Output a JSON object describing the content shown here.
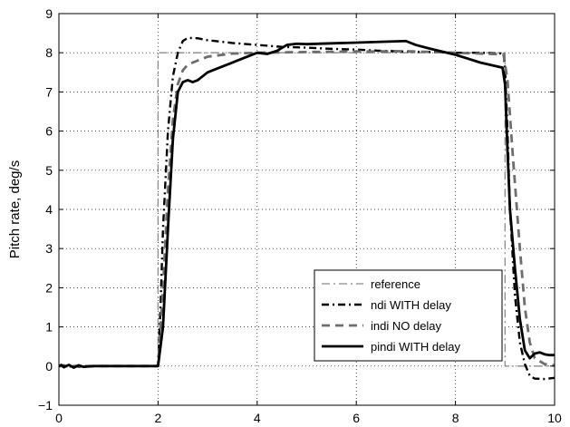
{
  "chart_data": {
    "type": "line",
    "xlabel": "",
    "ylabel": "Pitch rate, deg/s",
    "xlim": [
      0,
      10
    ],
    "ylim": [
      -1,
      9
    ],
    "x_ticks": [
      0,
      2,
      4,
      6,
      8,
      10
    ],
    "y_ticks": [
      -1,
      0,
      1,
      2,
      3,
      4,
      5,
      6,
      7,
      8,
      9
    ],
    "grid": true,
    "legend_position": "bottom-right",
    "series": [
      {
        "name": "reference",
        "color": "#8a8a8a",
        "style": "dashdot-thin",
        "points": [
          [
            0,
            0
          ],
          [
            2.0,
            0
          ],
          [
            2.0,
            8
          ],
          [
            9.0,
            8
          ],
          [
            9.0,
            0
          ],
          [
            10,
            0
          ]
        ]
      },
      {
        "name": "ndi WITH delay",
        "color": "#000000",
        "style": "dashdot",
        "points": [
          [
            0,
            0
          ],
          [
            0.1,
            0.02
          ],
          [
            0.2,
            -0.02
          ],
          [
            0.3,
            0.02
          ],
          [
            0.4,
            -0.02
          ],
          [
            0.5,
            0
          ],
          [
            2.0,
            0
          ],
          [
            2.05,
            1.5
          ],
          [
            2.1,
            3.5
          ],
          [
            2.2,
            6.0
          ],
          [
            2.3,
            7.4
          ],
          [
            2.4,
            8.0
          ],
          [
            2.5,
            8.3
          ],
          [
            2.6,
            8.38
          ],
          [
            2.8,
            8.37
          ],
          [
            3.0,
            8.32
          ],
          [
            3.5,
            8.25
          ],
          [
            4.0,
            8.2
          ],
          [
            4.5,
            8.15
          ],
          [
            5.0,
            8.13
          ],
          [
            5.5,
            8.1
          ],
          [
            6.0,
            8.08
          ],
          [
            6.5,
            8.05
          ],
          [
            7.0,
            8.03
          ],
          [
            7.5,
            8.02
          ],
          [
            8.0,
            8.0
          ],
          [
            8.5,
            8.0
          ],
          [
            8.97,
            7.98
          ],
          [
            9.0,
            7.6
          ],
          [
            9.05,
            6.0
          ],
          [
            9.1,
            4.0
          ],
          [
            9.2,
            1.8
          ],
          [
            9.3,
            0.6
          ],
          [
            9.4,
            0.05
          ],
          [
            9.5,
            -0.25
          ],
          [
            9.6,
            -0.32
          ],
          [
            9.8,
            -0.33
          ],
          [
            10,
            -0.3
          ]
        ]
      },
      {
        "name": "indi NO delay",
        "color": "#6e6e6e",
        "style": "dashed",
        "points": [
          [
            0,
            0
          ],
          [
            2.0,
            0
          ],
          [
            2.1,
            2.0
          ],
          [
            2.2,
            4.5
          ],
          [
            2.3,
            6.3
          ],
          [
            2.4,
            7.2
          ],
          [
            2.5,
            7.55
          ],
          [
            2.6,
            7.7
          ],
          [
            2.8,
            7.8
          ],
          [
            3.0,
            7.9
          ],
          [
            3.5,
            7.98
          ],
          [
            4.0,
            8.0
          ],
          [
            5.0,
            8.02
          ],
          [
            6.0,
            8.03
          ],
          [
            7.0,
            8.04
          ],
          [
            8.0,
            8.0
          ],
          [
            8.97,
            7.96
          ],
          [
            9.05,
            7.3
          ],
          [
            9.15,
            5.5
          ],
          [
            9.3,
            3.0
          ],
          [
            9.4,
            1.5
          ],
          [
            9.5,
            0.6
          ],
          [
            9.6,
            0.2
          ],
          [
            9.8,
            0.05
          ],
          [
            10,
            0.02
          ]
        ]
      },
      {
        "name": "pindi WITH delay",
        "color": "#000000",
        "style": "solid",
        "points": [
          [
            0,
            0
          ],
          [
            0.05,
            0.03
          ],
          [
            0.1,
            -0.03
          ],
          [
            0.2,
            0.03
          ],
          [
            0.3,
            -0.04
          ],
          [
            0.4,
            0.02
          ],
          [
            0.5,
            -0.02
          ],
          [
            0.7,
            0
          ],
          [
            2.0,
            0
          ],
          [
            2.1,
            1.0
          ],
          [
            2.2,
            3.5
          ],
          [
            2.3,
            5.8
          ],
          [
            2.4,
            7.0
          ],
          [
            2.5,
            7.25
          ],
          [
            2.6,
            7.3
          ],
          [
            2.7,
            7.25
          ],
          [
            2.8,
            7.3
          ],
          [
            3.0,
            7.5
          ],
          [
            3.3,
            7.65
          ],
          [
            3.6,
            7.8
          ],
          [
            4.0,
            8.0
          ],
          [
            4.2,
            7.97
          ],
          [
            4.4,
            8.05
          ],
          [
            4.6,
            8.2
          ],
          [
            4.8,
            8.23
          ],
          [
            5.0,
            8.22
          ],
          [
            5.5,
            8.24
          ],
          [
            6.0,
            8.26
          ],
          [
            6.5,
            8.28
          ],
          [
            7.0,
            8.3
          ],
          [
            7.2,
            8.2
          ],
          [
            7.5,
            8.1
          ],
          [
            8.0,
            7.95
          ],
          [
            8.5,
            7.75
          ],
          [
            8.95,
            7.62
          ],
          [
            9.0,
            7.2
          ],
          [
            9.05,
            5.5
          ],
          [
            9.1,
            4.0
          ],
          [
            9.2,
            2.5
          ],
          [
            9.3,
            1.2
          ],
          [
            9.4,
            0.4
          ],
          [
            9.5,
            0.2
          ],
          [
            9.6,
            0.32
          ],
          [
            9.7,
            0.35
          ],
          [
            9.8,
            0.3
          ],
          [
            9.9,
            0.28
          ],
          [
            10,
            0.28
          ]
        ]
      }
    ]
  }
}
